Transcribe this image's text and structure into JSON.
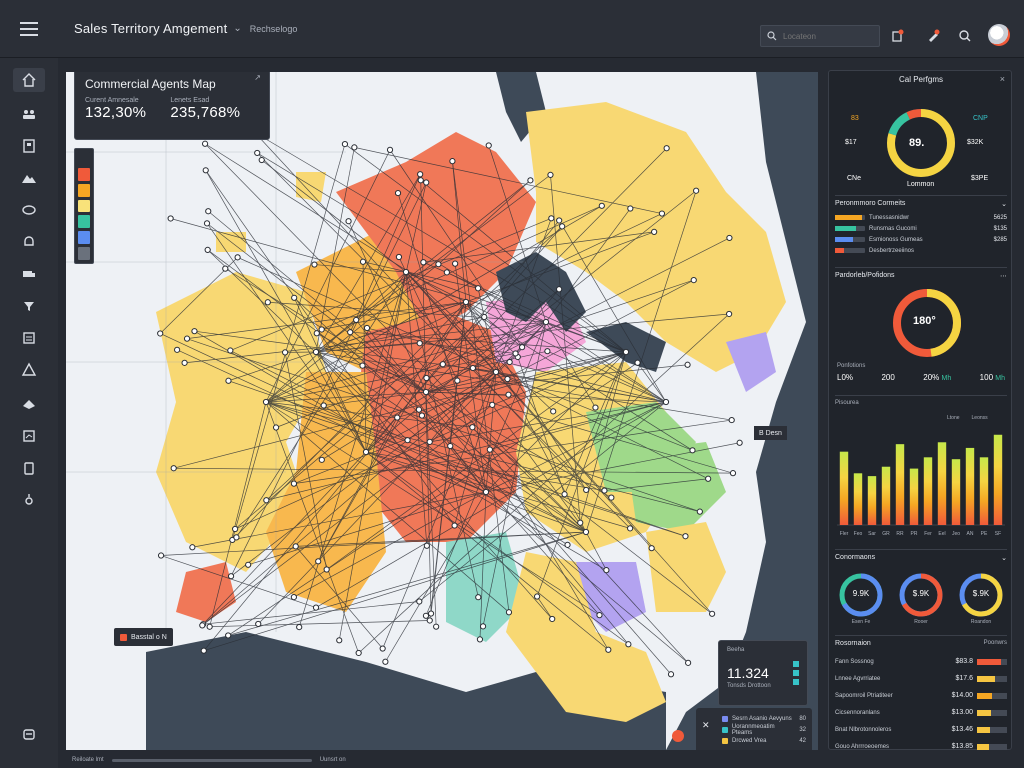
{
  "header": {
    "title": "Sales Territory Amgement",
    "caret": "⌄",
    "subtitle": "Rechselogo",
    "search_placeholder": "Locateon"
  },
  "sidebar": {
    "icons": [
      "home-icon",
      "team-icon",
      "building-icon",
      "mountain-icon",
      "circle-icon",
      "bell-icon",
      "truck-icon",
      "filter-icon",
      "list-icon",
      "warning-icon",
      "shipment-icon",
      "report-icon",
      "clipboard-icon",
      "settings-icon",
      "logout-icon"
    ]
  },
  "map_panel": {
    "title": "Commercial Agents Map",
    "pin": "↗",
    "stat1_label": "Curent Amnesale",
    "stat1_value": "132,30%",
    "stat2_label": "Lenets Esad",
    "stat2_value": "235,768%",
    "zoom_label": "Basstal o  N",
    "marker_label": "B  Desn",
    "mini_card": {
      "label": "Beeha",
      "value": "11.324",
      "sub": "Tonsds Drottoon"
    },
    "legend": [
      {
        "label": "Sesrn Asanio Aevyuns",
        "value": "80",
        "color": "#7a8cf0"
      },
      {
        "label": "Uorannmeoatim Pteams",
        "value": "32",
        "color": "#37c3c8"
      },
      {
        "label": "Drcwed Vrea",
        "value": "42",
        "color": "#f5c542"
      }
    ],
    "footer_label": "Reiloate  lmt",
    "footer_right": "Uunsrt  on",
    "colors": {
      "hot": "#f07858",
      "warm": "#f8b84e",
      "mild": "#f8d873",
      "green": "#9fd98a",
      "teal": "#8fd8c8",
      "pink": "#f5a6d8",
      "purple": "#b3a3f0",
      "water": "#3e4a58"
    }
  },
  "right_panel": {
    "title": "Cal Perfgms",
    "close": "×",
    "gauge1": {
      "value": "89.",
      "left_top": "83",
      "left_mid": "$17",
      "left_bot": "CNe",
      "right_top": "CNP",
      "right_mid": "$32K",
      "right_bot": "$3PE",
      "caption": "Lommon"
    },
    "progress_title": "Peronmmoro Cormeits",
    "progress": [
      {
        "label": "Tunessasnidwr",
        "value": "5625",
        "color": "#f5a623",
        "fill": 0.9
      },
      {
        "label": "Runsmas Gucomi",
        "value": "$135",
        "color": "#37c3a0",
        "fill": 0.7
      },
      {
        "label": "Esmionoss Gumeas",
        "value": "$285",
        "color": "#5b8df0",
        "fill": 0.6
      },
      {
        "label": "Desbertrzeeiinos",
        "value": "",
        "color": "#f05a3a",
        "fill": 0.3
      }
    ],
    "gauge2_title": "Pardorleb/Pofidons",
    "gauge2_value": "180°",
    "stats_title": "Ponfotions",
    "stats": [
      {
        "value": "L0%",
        "delta": ""
      },
      {
        "value": "200",
        "delta": ""
      },
      {
        "value": "20%",
        "delta": "Mh"
      },
      {
        "value": "100",
        "delta": "Mh"
      }
    ],
    "chart_caption": "Pisourea",
    "chart_legend": [
      "Ltone",
      "Leonss"
    ],
    "chart_data": {
      "type": "bar",
      "categories": [
        "Fler",
        "Feo",
        "Sar",
        "GR",
        "RR",
        "PR",
        "Fer",
        "Eel",
        "Jeo",
        "AN",
        "PE",
        "SF"
      ],
      "series": [
        {
          "values": [
            78,
            55,
            52,
            62,
            86,
            60,
            72,
            88,
            70,
            82,
            72,
            96
          ]
        }
      ],
      "ylim": [
        0,
        100
      ]
    },
    "donuts_title": "Conormaons",
    "donuts": [
      {
        "value": "9.9K",
        "caption": "Esen Fe"
      },
      {
        "value": "$.9K",
        "caption": "Rooer"
      },
      {
        "value": "$.9K",
        "caption": "Roandon"
      }
    ],
    "ranking_title": "Rosornaion",
    "ranking_right": "Poonwrs",
    "ranking": [
      {
        "name": "Fann Sossnog",
        "value": "$83.8",
        "color": "#f05a3a",
        "fill": 0.8
      },
      {
        "name": "Lnnee Agvrriatee",
        "value": "$17.6",
        "color": "#f5c542",
        "fill": 0.6
      },
      {
        "name": "Sapoomroil Ptriatiteer",
        "value": "$14.00",
        "color": "#f5a623",
        "fill": 0.5
      },
      {
        "name": "Cicsennoranlans",
        "value": "$13.00",
        "color": "#f5c542",
        "fill": 0.45
      },
      {
        "name": "Bnat Nlbrotonnoleros",
        "value": "$13.46",
        "color": "#f5c542",
        "fill": 0.42
      },
      {
        "name": "Gouo Ahrrroeoemes",
        "value": "$13.85",
        "color": "#f5c542",
        "fill": 0.4
      }
    ]
  }
}
